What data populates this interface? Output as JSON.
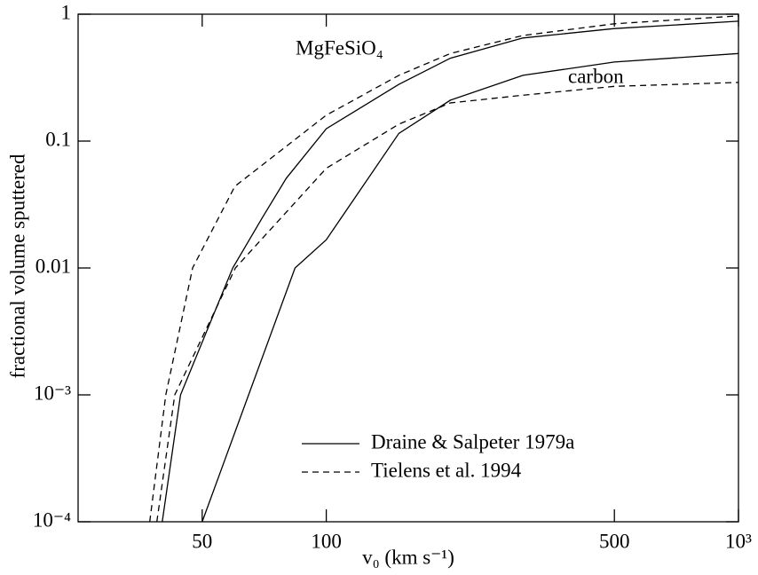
{
  "chart_data": {
    "type": "line",
    "xlabel": "v₀ (km s⁻¹)",
    "ylabel": "fractional volume sputtered",
    "xscale": "log",
    "yscale": "log",
    "xlim": [
      25,
      1000
    ],
    "ylim": [
      0.0001,
      1
    ],
    "xticks": [
      50,
      100,
      500,
      {
        "value": 1000,
        "label": "10³"
      }
    ],
    "yticks": [
      {
        "value": 0.0001,
        "label": "10⁻⁴"
      },
      {
        "value": 0.001,
        "label": "10⁻³"
      },
      0.01,
      0.1,
      1
    ],
    "color": "#000000",
    "series": [
      {
        "dashed": false,
        "x": [
          40,
          44.3,
          59.3,
          70,
          80,
          100,
          150,
          200,
          300,
          500,
          1000
        ],
        "values": [
          0.0001,
          0.001,
          0.01,
          0.025,
          0.051,
          0.125,
          0.28,
          0.45,
          0.65,
          0.77,
          0.88
        ]
      },
      {
        "dashed": true,
        "x": [
          37.3,
          40.8,
          47.4,
          60,
          100,
          150,
          200,
          300,
          500,
          1000
        ],
        "values": [
          0.0001,
          0.001,
          0.01,
          0.044,
          0.16,
          0.33,
          0.49,
          0.68,
          0.84,
          0.97
        ]
      },
      {
        "dashed": false,
        "x": [
          50,
          64.8,
          84,
          100,
          150,
          200,
          300,
          500,
          1000
        ],
        "values": [
          0.0001,
          0.001,
          0.01,
          0.0167,
          0.115,
          0.21,
          0.33,
          0.42,
          0.49
        ]
      },
      {
        "dashed": true,
        "x": [
          38.8,
          42.9,
          60.2,
          100,
          150,
          200,
          300,
          500,
          1000
        ],
        "values": [
          0.0001,
          0.001,
          0.01,
          0.061,
          0.136,
          0.2,
          0.23,
          0.27,
          0.29
        ]
      }
    ],
    "annotations": [
      "MgFeSiO₄",
      "carbon"
    ],
    "legend": [
      {
        "label": "Draine & Salpeter 1979a",
        "dashed": false
      },
      {
        "label": "Tielens et al. 1994",
        "dashed": true
      }
    ]
  }
}
